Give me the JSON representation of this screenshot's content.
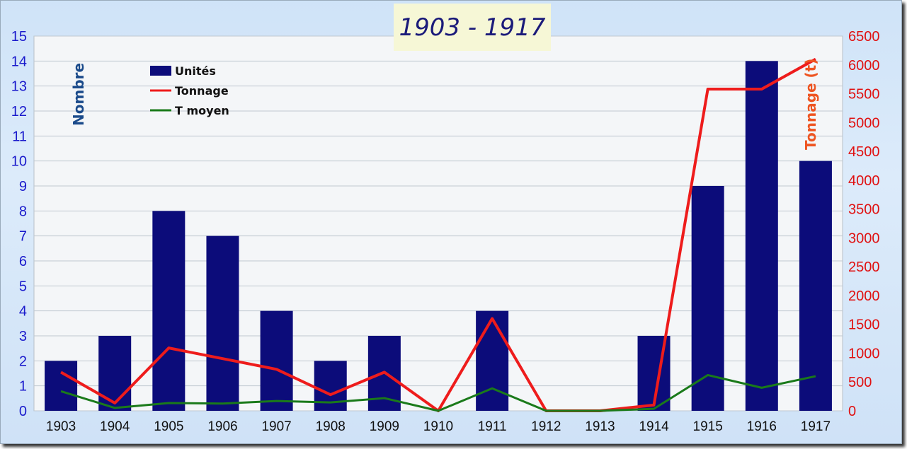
{
  "chart_data": {
    "type": "bar+line",
    "title": "1903 - 1917",
    "categories": [
      "1903",
      "1904",
      "1905",
      "1906",
      "1907",
      "1908",
      "1909",
      "1910",
      "1911",
      "1912",
      "1913",
      "1914",
      "1915",
      "1916",
      "1917"
    ],
    "ylabel": "Nombre",
    "y2label": "Tonnage (t)",
    "ylim": [
      0,
      15
    ],
    "y2lim": [
      0,
      6500
    ],
    "yticks": [
      0,
      1,
      2,
      3,
      4,
      5,
      6,
      7,
      8,
      9,
      10,
      11,
      12,
      13,
      14,
      15
    ],
    "y2ticks": [
      0,
      500,
      1000,
      1500,
      2000,
      2500,
      3000,
      3500,
      4000,
      4500,
      5000,
      5500,
      6000,
      6500
    ],
    "legend_position": "top-left",
    "series": [
      {
        "name": "Unités",
        "type": "bar",
        "axis": "left",
        "color": "#0c0c7a",
        "values": [
          2,
          3,
          8,
          7,
          4,
          2,
          3,
          0,
          4,
          0,
          0,
          3,
          9,
          14,
          10
        ]
      },
      {
        "name": "Tonnage",
        "type": "line",
        "axis": "right",
        "color": "#ee1c1c",
        "values": [
          670,
          135,
          1090,
          905,
          720,
          280,
          670,
          0,
          1600,
          0,
          0,
          100,
          5580,
          5580,
          6100
        ]
      },
      {
        "name": "T moyen",
        "type": "line",
        "axis": "right",
        "color": "#1a7a1a",
        "values": [
          340,
          50,
          135,
          125,
          170,
          145,
          220,
          0,
          390,
          0,
          0,
          35,
          620,
          400,
          600
        ]
      }
    ]
  }
}
